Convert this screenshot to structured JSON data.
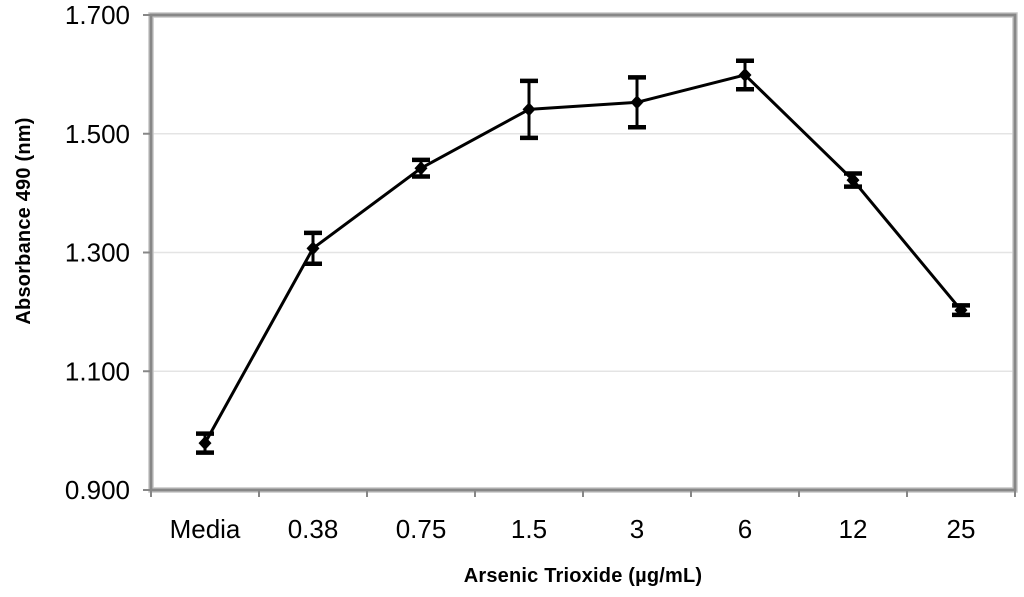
{
  "chart_data": {
    "type": "line",
    "title": "",
    "xlabel": "Arsenic Trioxide (µg/mL)",
    "ylabel": "Absorbance 490 (nm)",
    "categories": [
      "Media",
      "0.38",
      "0.75",
      "1.5",
      "3",
      "6",
      "12",
      "25"
    ],
    "series": [
      {
        "name": "Absorbance 490 nm",
        "values": [
          0.979,
          1.307,
          1.442,
          1.541,
          1.553,
          1.599,
          1.422,
          1.203
        ],
        "errors": [
          0.016,
          0.026,
          0.014,
          0.048,
          0.042,
          0.024,
          0.011,
          0.008
        ]
      }
    ],
    "ylim": [
      0.9,
      1.7
    ],
    "y_ticks": [
      "0.900",
      "1.100",
      "1.300",
      "1.500",
      "1.700"
    ],
    "y_tick_values": [
      0.9,
      1.1,
      1.3,
      1.5,
      1.7
    ],
    "grid": "horizontal",
    "legend": "none",
    "marker": "diamond",
    "error_bars": "vertical-with-caps",
    "colors": {
      "series": "#000000",
      "frame": "#878787",
      "frame_outer": "#c6c6c6",
      "gridline": "#e4e4e4",
      "text": "#000000",
      "background": "#ffffff"
    }
  }
}
